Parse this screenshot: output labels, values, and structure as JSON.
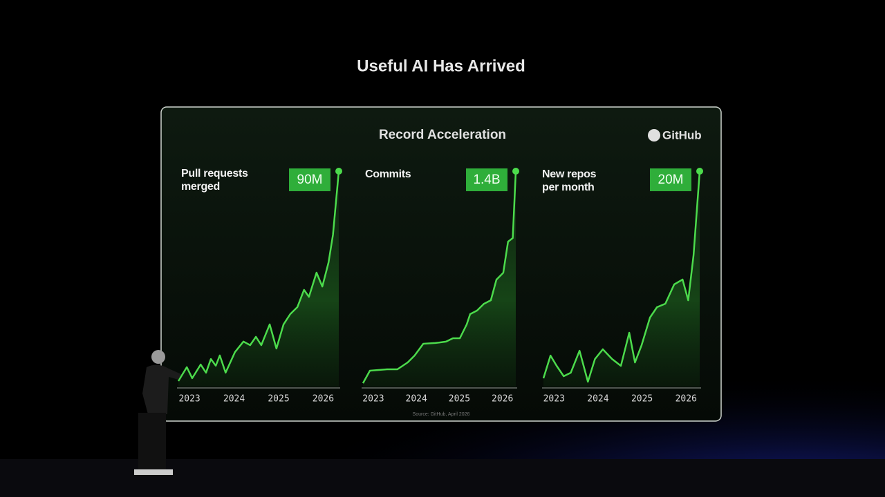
{
  "title": "Useful AI Has Arrived",
  "panel_title": "Record Acceleration",
  "brand": "GitHub",
  "source": "Source: GitHub, April 2026",
  "chart_data": [
    {
      "type": "line",
      "title": "Pull requests merged",
      "last_label": "90M",
      "color": "#4cdb4c",
      "xlim": [
        2022.75,
        2026.35
      ],
      "xticks": [
        2023,
        2024,
        2025,
        2026
      ],
      "ylim": [
        0,
        90000000
      ],
      "x": [
        2022.75,
        2022.94,
        2023.06,
        2023.25,
        2023.37,
        2023.48,
        2023.59,
        2023.68,
        2023.81,
        2024.02,
        2024.21,
        2024.36,
        2024.49,
        2024.61,
        2024.8,
        2024.95,
        2025.11,
        2025.26,
        2025.42,
        2025.57,
        2025.68,
        2025.85,
        2025.98,
        2026.12,
        2026.22,
        2026.35
      ],
      "values": [
        2300000,
        8100000,
        3500000,
        9200000,
        5800000,
        11500000,
        8700000,
        13000000,
        5800000,
        14400000,
        18800000,
        17300000,
        20800000,
        17300000,
        26000000,
        15900000,
        26000000,
        30300000,
        33200000,
        40400000,
        37500000,
        47600000,
        41800000,
        51900000,
        63500000,
        90000000
      ]
    },
    {
      "type": "line",
      "title": "Commits",
      "last_label": "1.4B",
      "color": "#4cdb4c",
      "xlim": [
        2022.76,
        2026.31
      ],
      "xticks": [
        2023,
        2024,
        2025,
        2026
      ],
      "ylim": [
        0,
        1400000000
      ],
      "x": [
        2022.76,
        2022.92,
        2023.32,
        2023.56,
        2023.8,
        2023.96,
        2024.16,
        2024.44,
        2024.69,
        2024.85,
        2025.01,
        2025.17,
        2025.25,
        2025.41,
        2025.57,
        2025.73,
        2025.86,
        2026.02,
        2026.13,
        2026.24,
        2026.31
      ],
      "values": [
        22000000,
        103000000,
        112000000,
        112000000,
        157000000,
        202000000,
        278000000,
        283000000,
        292000000,
        314000000,
        314000000,
        404000000,
        471000000,
        494000000,
        538000000,
        561000000,
        695000000,
        740000000,
        942000000,
        965000000,
        1400000000
      ]
    },
    {
      "type": "line",
      "title": "New repos per month",
      "last_label": "20M",
      "color": "#4cdb4c",
      "xlim": [
        2022.76,
        2026.31
      ],
      "xticks": [
        2023,
        2024,
        2025,
        2026
      ],
      "ylim": [
        0,
        20000000
      ],
      "x": [
        2022.76,
        2022.92,
        2023.06,
        2023.22,
        2023.38,
        2023.58,
        2023.77,
        2023.93,
        2024.11,
        2024.32,
        2024.52,
        2024.71,
        2024.84,
        2024.99,
        2025.18,
        2025.34,
        2025.53,
        2025.73,
        2025.92,
        2026.05,
        2026.17,
        2026.31
      ],
      "values": [
        769000,
        2880000,
        1920000,
        962000,
        1280000,
        3330000,
        449000,
        2560000,
        3460000,
        2560000,
        1920000,
        5000000,
        2240000,
        3850000,
        6410000,
        7370000,
        7690000,
        9490000,
        9940000,
        8010000,
        12200000,
        20000000
      ]
    }
  ]
}
